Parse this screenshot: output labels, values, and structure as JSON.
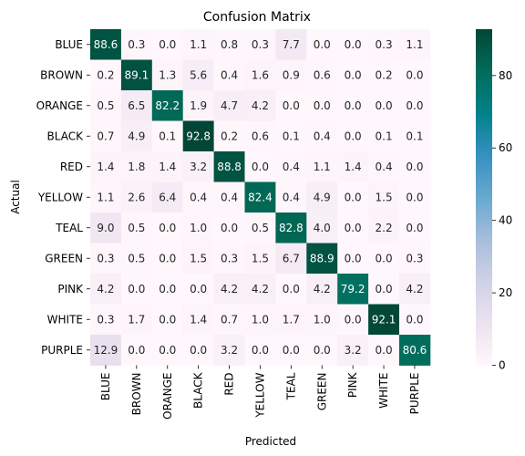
{
  "chart_data": {
    "type": "heatmap",
    "title": "Confusion Matrix",
    "xlabel": "Predicted",
    "ylabel": "Actual",
    "x_categories": [
      "BLUE",
      "BROWN",
      "ORANGE",
      "BLACK",
      "RED",
      "YELLOW",
      "TEAL",
      "GREEN",
      "PINK",
      "WHITE",
      "PURPLE"
    ],
    "y_categories": [
      "BLUE",
      "BROWN",
      "ORANGE",
      "BLACK",
      "RED",
      "YELLOW",
      "TEAL",
      "GREEN",
      "PINK",
      "WHITE",
      "PURPLE"
    ],
    "values": [
      [
        88.6,
        0.3,
        0.0,
        1.1,
        0.8,
        0.3,
        7.7,
        0.0,
        0.0,
        0.3,
        1.1
      ],
      [
        0.2,
        89.1,
        1.3,
        5.6,
        0.4,
        1.6,
        0.9,
        0.6,
        0.0,
        0.2,
        0.0
      ],
      [
        0.5,
        6.5,
        82.2,
        1.9,
        4.7,
        4.2,
        0.0,
        0.0,
        0.0,
        0.0,
        0.0
      ],
      [
        0.7,
        4.9,
        0.1,
        92.8,
        0.2,
        0.6,
        0.1,
        0.4,
        0.0,
        0.1,
        0.1
      ],
      [
        1.4,
        1.8,
        1.4,
        3.2,
        88.8,
        0.0,
        0.4,
        1.1,
        1.4,
        0.4,
        0.0
      ],
      [
        1.1,
        2.6,
        6.4,
        0.4,
        0.4,
        82.4,
        0.4,
        4.9,
        0.0,
        1.5,
        0.0
      ],
      [
        9.0,
        0.5,
        0.0,
        1.0,
        0.0,
        0.5,
        82.8,
        4.0,
        0.0,
        2.2,
        0.0
      ],
      [
        0.3,
        0.5,
        0.0,
        1.5,
        0.3,
        1.5,
        6.7,
        88.9,
        0.0,
        0.0,
        0.3
      ],
      [
        4.2,
        0.0,
        0.0,
        0.0,
        4.2,
        4.2,
        0.0,
        4.2,
        79.2,
        0.0,
        4.2
      ],
      [
        0.3,
        1.7,
        0.0,
        1.4,
        0.7,
        1.0,
        1.7,
        1.0,
        0.0,
        92.1,
        0.0
      ],
      [
        12.9,
        0.0,
        0.0,
        0.0,
        3.2,
        0.0,
        0.0,
        0.0,
        3.2,
        0.0,
        80.6
      ]
    ],
    "value_range": [
      0,
      92.8
    ],
    "colormap": "PuBuGn",
    "colorbar_ticks": [
      0,
      20,
      40,
      60,
      80
    ],
    "grid": false
  }
}
